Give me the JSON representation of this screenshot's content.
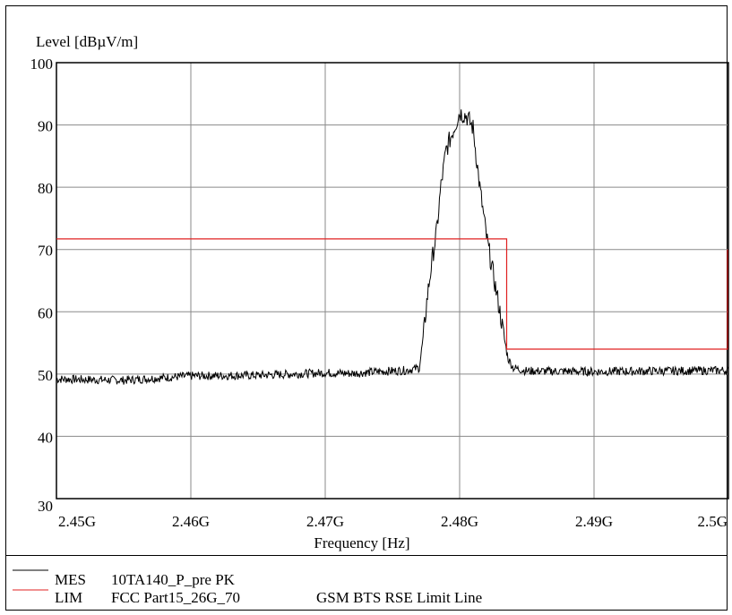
{
  "chart_data": {
    "type": "line",
    "ylabel": "Level [dBµV/m]",
    "xlabel": "Frequency [Hz]",
    "xlim": [
      2.45,
      2.5
    ],
    "ylim": [
      30,
      100
    ],
    "grid": true,
    "x_tick_labels": [
      "2.45G",
      "2.46G",
      "2.47G",
      "2.48G",
      "2.49G",
      "2.5G"
    ],
    "x_tick_values": [
      2.45,
      2.46,
      2.47,
      2.48,
      2.49,
      2.5
    ],
    "y_tick_labels": [
      "30",
      "40",
      "50",
      "60",
      "70",
      "80",
      "90",
      "100"
    ],
    "y_tick_values": [
      30,
      40,
      50,
      60,
      70,
      80,
      90,
      100
    ],
    "series": [
      {
        "name": "MES",
        "legend_code": "MES",
        "legend_label": "10TA140_P_pre PK",
        "color": "#000000",
        "x": [
          2.45,
          2.455,
          2.46,
          2.465,
          2.47,
          2.472,
          2.474,
          2.476,
          2.477,
          2.4773,
          2.4776,
          2.478,
          2.4783,
          2.4786,
          2.479,
          2.4795,
          2.48,
          2.4805,
          2.481,
          2.4815,
          2.482,
          2.4825,
          2.483,
          2.4833,
          2.4836,
          2.484,
          2.485,
          2.49,
          2.495,
          2.5
        ],
        "y": [
          49.2,
          49.0,
          49.7,
          49.8,
          50.2,
          50.1,
          50.4,
          50.6,
          51.0,
          56.0,
          62.5,
          69.0,
          73.0,
          80.0,
          86.0,
          89.0,
          92.0,
          91.5,
          89.5,
          80.0,
          72.0,
          66.0,
          60.0,
          56.0,
          52.5,
          51.0,
          50.5,
          50.4,
          50.5,
          50.6
        ]
      },
      {
        "name": "LIM",
        "legend_code": "LIM",
        "legend_label": "FCC Part15_26G_70",
        "legend_note": "GSM BTS RSE Limit Line",
        "color": "#e02020",
        "x": [
          2.45,
          2.4835,
          2.4835,
          2.5,
          2.5
        ],
        "y": [
          71.7,
          71.7,
          54.0,
          54.0,
          70.0
        ]
      }
    ]
  }
}
